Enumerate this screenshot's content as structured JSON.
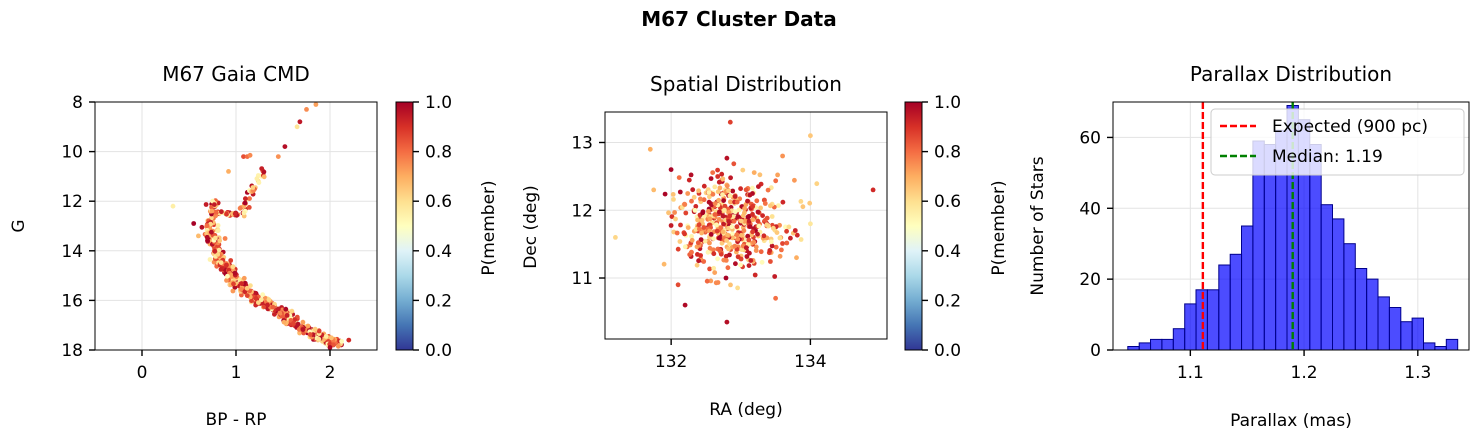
{
  "figure": {
    "title": "M67 Cluster Data"
  },
  "chart_data": [
    {
      "type": "scatter",
      "title": "M67 Gaia CMD",
      "xlabel": "BP - RP",
      "ylabel": "G",
      "xlim": [
        -0.5,
        2.5
      ],
      "ylim": [
        18,
        8
      ],
      "y_inverted": true,
      "xticks": [
        0,
        1,
        2
      ],
      "yticks": [
        8,
        10,
        12,
        14,
        16,
        18
      ],
      "grid": true,
      "colormap": "RdYlBu_r",
      "colorbar": {
        "label": "P(member)",
        "range": [
          0.0,
          1.0
        ],
        "ticks": [
          "0.0",
          "0.2",
          "0.4",
          "0.6",
          "0.8",
          "1.0"
        ]
      },
      "features": {
        "main_sequence": [
          [
            0.7,
            12.8
          ],
          [
            0.76,
            13.6
          ],
          [
            0.84,
            14.4
          ],
          [
            0.95,
            15.0
          ],
          [
            1.1,
            15.6
          ],
          [
            1.3,
            16.1
          ],
          [
            1.5,
            16.6
          ],
          [
            1.7,
            17.1
          ],
          [
            1.9,
            17.5
          ],
          [
            2.1,
            17.8
          ]
        ],
        "subgiant_branch": [
          [
            0.76,
            12.5
          ],
          [
            0.85,
            12.45
          ],
          [
            0.95,
            12.5
          ],
          [
            1.05,
            12.55
          ]
        ],
        "red_giant_branch": [
          [
            1.05,
            12.6
          ],
          [
            1.1,
            12.2
          ],
          [
            1.16,
            11.7
          ],
          [
            1.22,
            11.2
          ],
          [
            1.3,
            10.6
          ]
        ],
        "turnoff_hook": [
          [
            0.72,
            12.6
          ],
          [
            0.76,
            12.2
          ],
          [
            0.8,
            12.0
          ]
        ],
        "scattered": [
          [
            0.33,
            12.2
          ],
          [
            1.08,
            10.2
          ],
          [
            1.12,
            10.2
          ],
          [
            1.15,
            10.15
          ],
          [
            0.92,
            10.8
          ],
          [
            1.45,
            10.2
          ],
          [
            1.52,
            9.8
          ],
          [
            1.65,
            9.0
          ],
          [
            1.68,
            8.8
          ],
          [
            1.75,
            8.3
          ],
          [
            1.85,
            8.1
          ],
          [
            0.55,
            12.9
          ],
          [
            0.6,
            13.4
          ],
          [
            2.0,
            17.9
          ],
          [
            2.2,
            17.6
          ]
        ]
      }
    },
    {
      "type": "scatter",
      "title": "Spatial Distribution",
      "xlabel": "RA (deg)",
      "ylabel": "Dec (deg)",
      "xlim": [
        131.05,
        135.1
      ],
      "ylim": [
        10.1,
        13.45
      ],
      "xticks": [
        132,
        134
      ],
      "yticks": [
        11,
        12,
        13
      ],
      "grid": true,
      "colormap": "RdYlBu_r",
      "colorbar": {
        "label": "P(member)",
        "range": [
          0.0,
          1.0
        ],
        "ticks": [
          "0.0",
          "0.2",
          "0.4",
          "0.6",
          "0.8",
          "1.0"
        ]
      },
      "cluster_center": [
        132.85,
        11.81
      ],
      "scattered": [
        [
          131.2,
          11.6
        ],
        [
          131.7,
          12.9
        ],
        [
          131.75,
          12.3
        ],
        [
          132.1,
          10.9
        ],
        [
          132.2,
          10.6
        ],
        [
          132.8,
          10.35
        ],
        [
          132.85,
          13.3
        ],
        [
          133.8,
          11.3
        ],
        [
          134.0,
          11.8
        ],
        [
          134.0,
          13.1
        ],
        [
          134.9,
          12.3
        ],
        [
          133.6,
          12.8
        ],
        [
          132.0,
          12.6
        ],
        [
          133.5,
          10.7
        ]
      ]
    },
    {
      "type": "bar",
      "subtype": "histogram",
      "title": "Parallax Distribution",
      "xlabel": "Parallax (mas)",
      "ylabel": "Number of Stars",
      "xlim": [
        1.032,
        1.345
      ],
      "ylim": [
        0,
        70
      ],
      "xticks": [
        "1.1",
        "1.2",
        "1.3"
      ],
      "yticks": [
        0,
        20,
        40,
        60
      ],
      "grid": true,
      "bin_edges": [
        1.045,
        1.055,
        1.065,
        1.075,
        1.085,
        1.095,
        1.105,
        1.115,
        1.125,
        1.135,
        1.145,
        1.155,
        1.165,
        1.175,
        1.185,
        1.195,
        1.205,
        1.215,
        1.225,
        1.235,
        1.245,
        1.255,
        1.265,
        1.275,
        1.285,
        1.295,
        1.305,
        1.315,
        1.325,
        1.335
      ],
      "counts": [
        1,
        2,
        3,
        3,
        6,
        13,
        17,
        17,
        24,
        27,
        35,
        59,
        58,
        62,
        69,
        65,
        58,
        41,
        37,
        30,
        23,
        20,
        15,
        12,
        8,
        9,
        2,
        1,
        3
      ],
      "bar_color": "#0000ff",
      "vlines": [
        {
          "x": 1.111,
          "label": "Expected (900 pc)",
          "color": "#ff0000"
        },
        {
          "x": 1.19,
          "label": "Median: 1.19",
          "color": "#008000"
        }
      ],
      "legend": {
        "placement": "upper-right",
        "entries": [
          "Expected (900 pc)",
          "Median: 1.19"
        ]
      }
    }
  ]
}
